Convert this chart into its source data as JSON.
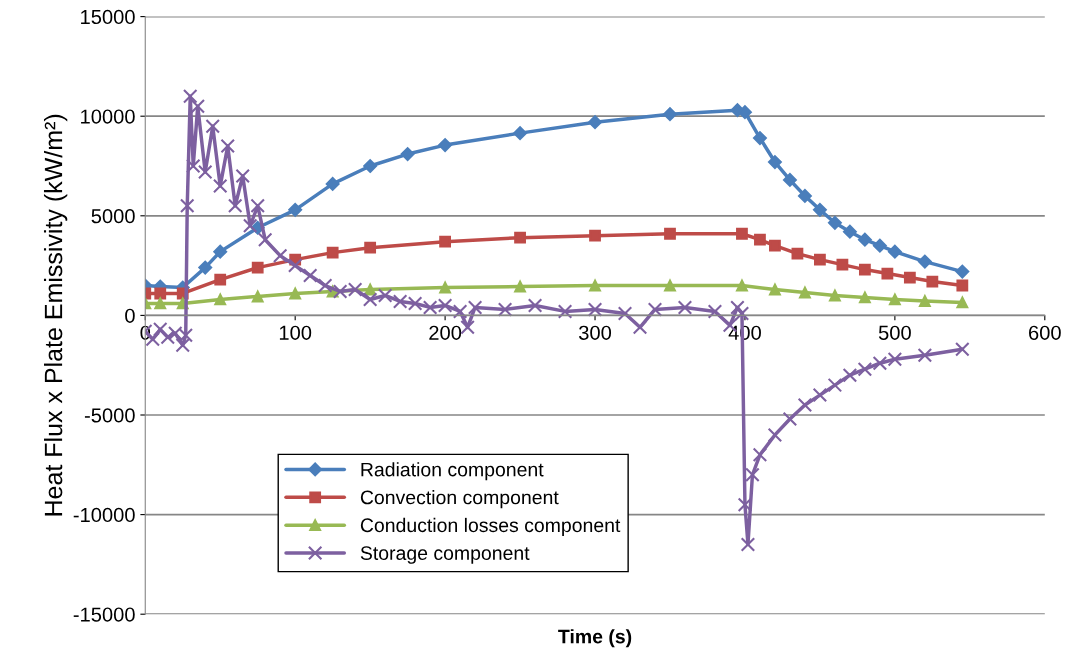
{
  "chart_data": {
    "type": "line",
    "xlabel": "Time (s)",
    "ylabel": "Heat Flux x Plate Emissivity (kW/m²)",
    "xlim": [
      0,
      600
    ],
    "xticks": [
      0,
      100,
      200,
      300,
      400,
      500,
      600
    ],
    "ylim": [
      -15000,
      15000
    ],
    "yticks": [
      -15000,
      -10000,
      -5000,
      0,
      5000,
      10000,
      15000
    ],
    "grid": "y",
    "legend": "bottom left",
    "line_style": "solid",
    "series": [
      {
        "name": "Radiation component",
        "color": "#4a7ebb",
        "marker": "diamond",
        "x": [
          0,
          10,
          25,
          40,
          50,
          75,
          100,
          125,
          150,
          175,
          200,
          250,
          300,
          350,
          395,
          400,
          410,
          420,
          430,
          440,
          450,
          460,
          470,
          480,
          490,
          500,
          520,
          545
        ],
        "values": [
          1500,
          1450,
          1400,
          2400,
          3200,
          4400,
          5300,
          6600,
          7500,
          8100,
          8550,
          9150,
          9700,
          10100,
          10300,
          10200,
          8900,
          7700,
          6800,
          6000,
          5300,
          4650,
          4200,
          3800,
          3500,
          3200,
          2700,
          2200
        ]
      },
      {
        "name": "Convection component",
        "color": "#be4b48",
        "marker": "square",
        "x": [
          0,
          10,
          25,
          50,
          75,
          100,
          125,
          150,
          200,
          250,
          300,
          350,
          398,
          410,
          420,
          435,
          450,
          465,
          480,
          495,
          510,
          525,
          545
        ],
        "values": [
          1100,
          1100,
          1100,
          1800,
          2400,
          2800,
          3150,
          3400,
          3700,
          3900,
          4000,
          4100,
          4100,
          3800,
          3500,
          3100,
          2800,
          2550,
          2300,
          2100,
          1900,
          1700,
          1500
        ]
      },
      {
        "name": "Conduction losses component",
        "color": "#98b954",
        "marker": "triangle",
        "x": [
          0,
          10,
          25,
          50,
          75,
          100,
          125,
          150,
          200,
          250,
          300,
          350,
          398,
          420,
          440,
          460,
          480,
          500,
          520,
          545
        ],
        "values": [
          600,
          600,
          600,
          800,
          950,
          1100,
          1200,
          1300,
          1400,
          1450,
          1500,
          1500,
          1500,
          1300,
          1150,
          1000,
          900,
          800,
          720,
          650
        ]
      },
      {
        "name": "Storage component",
        "color": "#7d60a0",
        "marker": "cross",
        "x": [
          0,
          5,
          10,
          15,
          20,
          25,
          27,
          28,
          30,
          32,
          35,
          40,
          45,
          50,
          55,
          60,
          65,
          70,
          75,
          80,
          90,
          100,
          110,
          120,
          130,
          140,
          150,
          160,
          170,
          180,
          190,
          200,
          210,
          215,
          220,
          240,
          260,
          280,
          300,
          320,
          330,
          340,
          360,
          380,
          390,
          395,
          398,
          400,
          402,
          405,
          410,
          420,
          430,
          440,
          450,
          460,
          470,
          480,
          490,
          500,
          520,
          545
        ],
        "values": [
          -800,
          -1200,
          -700,
          -1100,
          -900,
          -1500,
          -1000,
          5500,
          11000,
          7500,
          10500,
          7200,
          9500,
          6500,
          8500,
          5500,
          7000,
          4500,
          5500,
          3800,
          3000,
          2500,
          2000,
          1500,
          1200,
          1300,
          800,
          1000,
          700,
          600,
          400,
          500,
          200,
          -600,
          400,
          300,
          500,
          200,
          300,
          100,
          -600,
          300,
          400,
          200,
          -500,
          400,
          100,
          -9500,
          -11500,
          -8000,
          -7000,
          -6000,
          -5200,
          -4500,
          -4000,
          -3500,
          -3000,
          -2700,
          -2400,
          -2200,
          -2000,
          -1700
        ]
      }
    ]
  }
}
